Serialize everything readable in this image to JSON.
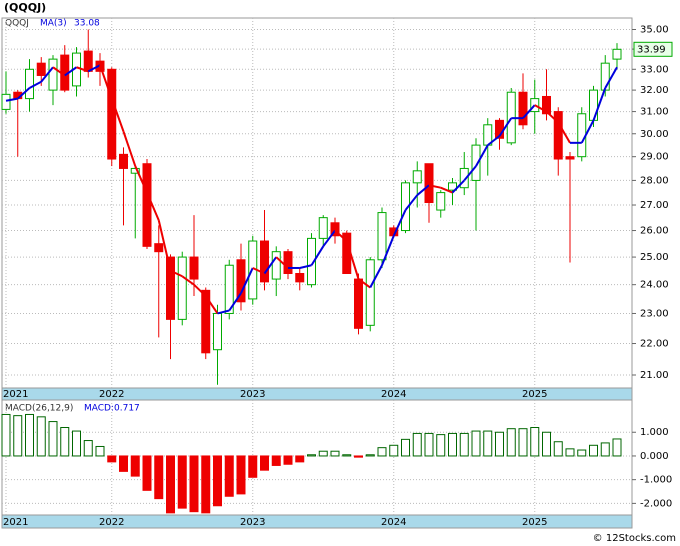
{
  "chart_data": [
    {
      "type": "candlestick",
      "title": "(QQQJ)",
      "symbol": "QQQJ",
      "ma_name": "MA(3)",
      "ma_label": "33.08",
      "watermark": "© 12Stocks.com",
      "categories": [
        "2021",
        null,
        null,
        null,
        null,
        null,
        null,
        null,
        null,
        "2022",
        null,
        null,
        null,
        null,
        null,
        null,
        null,
        null,
        null,
        null,
        null,
        "2023",
        null,
        null,
        null,
        null,
        null,
        null,
        null,
        null,
        null,
        null,
        null,
        "2024",
        null,
        null,
        null,
        null,
        null,
        null,
        null,
        null,
        null,
        null,
        null,
        "2025",
        null,
        null,
        null,
        null,
        null,
        null,
        null
      ],
      "open": [
        31.1,
        31.9,
        31.6,
        33.3,
        32.0,
        33.7,
        32.2,
        33.9,
        33.4,
        33.0,
        29.1,
        28.3,
        28.7,
        25.5,
        25.0,
        22.8,
        25.0,
        23.8,
        21.8,
        23.0,
        24.9,
        23.5,
        25.6,
        24.2,
        25.2,
        24.4,
        24.0,
        25.7,
        26.3,
        25.9,
        24.2,
        22.6,
        24.9,
        26.1,
        26.0,
        27.9,
        28.7,
        26.8,
        27.6,
        27.7,
        28.0,
        29.5,
        30.6,
        29.6,
        31.9,
        31.0,
        31.7,
        31.0,
        29.0,
        29.0,
        30.6,
        32.0,
        33.5
      ],
      "high": [
        32.9,
        32.0,
        33.5,
        33.6,
        33.7,
        34.2,
        34.1,
        35.0,
        33.8,
        33.1,
        29.4,
        28.6,
        28.9,
        26.2,
        25.1,
        25.2,
        26.6,
        23.9,
        23.3,
        24.9,
        25.5,
        25.8,
        26.8,
        25.4,
        25.3,
        24.6,
        25.9,
        26.6,
        26.5,
        26.0,
        24.4,
        25.0,
        26.9,
        26.2,
        28.0,
        28.8,
        28.7,
        27.6,
        28.1,
        29.2,
        29.8,
        30.7,
        30.7,
        32.1,
        32.8,
        32.5,
        33.0,
        31.2,
        29.2,
        31.2,
        32.2,
        33.7,
        34.3
      ],
      "low": [
        30.9,
        29.0,
        31.0,
        32.2,
        31.3,
        31.9,
        31.7,
        32.6,
        32.2,
        28.6,
        26.2,
        25.7,
        25.3,
        22.2,
        21.5,
        22.6,
        23.6,
        21.5,
        20.7,
        22.8,
        23.1,
        23.3,
        23.8,
        23.6,
        24.2,
        23.8,
        23.9,
        25.4,
        25.5,
        24.4,
        22.3,
        22.4,
        24.6,
        25.8,
        25.9,
        26.9,
        26.3,
        26.5,
        27.0,
        27.4,
        26.0,
        28.2,
        29.3,
        29.5,
        30.2,
        30.0,
        30.6,
        28.2,
        24.8,
        28.8,
        30.3,
        31.7,
        33.0
      ],
      "close": [
        31.8,
        31.6,
        33.0,
        32.7,
        33.5,
        32.0,
        33.8,
        32.9,
        32.9,
        28.9,
        28.5,
        28.5,
        25.4,
        25.2,
        22.8,
        25.0,
        24.2,
        21.7,
        23.0,
        24.7,
        23.4,
        25.6,
        24.1,
        25.2,
        24.4,
        24.1,
        25.7,
        26.5,
        25.8,
        24.4,
        22.5,
        24.9,
        26.7,
        25.8,
        27.9,
        28.4,
        27.1,
        27.5,
        27.9,
        28.5,
        29.5,
        30.4,
        29.8,
        31.9,
        30.4,
        31.6,
        30.9,
        28.9,
        28.9,
        30.9,
        32.0,
        33.3,
        33.99
      ],
      "ma": [
        31.5,
        31.6,
        32.1,
        32.4,
        33.1,
        32.7,
        33.1,
        32.9,
        33.2,
        31.6,
        30.1,
        28.6,
        27.5,
        26.4,
        24.5,
        24.3,
        24.0,
        23.6,
        23.0,
        23.1,
        23.7,
        24.6,
        24.4,
        25.0,
        24.6,
        24.6,
        24.7,
        25.4,
        26.0,
        25.6,
        24.2,
        23.9,
        24.7,
        25.8,
        26.8,
        27.4,
        27.8,
        27.7,
        27.5,
        28.0,
        28.6,
        29.5,
        29.9,
        30.7,
        30.7,
        31.3,
        31.0,
        30.5,
        29.6,
        29.6,
        30.6,
        32.1,
        33.1
      ],
      "up_color": "#00aa00",
      "down_color": "#ee0000",
      "ma_up_color": "#0000dd",
      "ma_down_color": "#ee0000",
      "log_scale": true,
      "grid": true,
      "ylim": [
        20.6,
        35.6
      ],
      "yticks": [
        {
          "value": 21,
          "label": "21.00"
        },
        {
          "value": 22,
          "label": "22.00"
        },
        {
          "value": 23,
          "label": "23.00"
        },
        {
          "value": 24,
          "label": "24.00"
        },
        {
          "value": 25,
          "label": "25.00"
        },
        {
          "value": 26,
          "label": "26.00"
        },
        {
          "value": 27,
          "label": "27.00"
        },
        {
          "value": 28,
          "label": "28.00"
        },
        {
          "value": 29,
          "label": "29.00"
        },
        {
          "value": 30,
          "label": "30.00"
        },
        {
          "value": 31,
          "label": "31.00"
        },
        {
          "value": 32,
          "label": "32.00"
        },
        {
          "value": 33,
          "label": "33.00"
        },
        {
          "value": 34,
          "label": "34.00"
        },
        {
          "value": 35,
          "label": "35.00"
        }
      ]
    },
    {
      "type": "bar",
      "name": "MACD(26,12,9)",
      "value_text": "MACD:0.717",
      "categories": [
        "2021",
        null,
        null,
        null,
        null,
        null,
        null,
        null,
        null,
        "2022",
        null,
        null,
        null,
        null,
        null,
        null,
        null,
        null,
        null,
        null,
        null,
        "2023",
        null,
        null,
        null,
        null,
        null,
        null,
        null,
        null,
        null,
        null,
        null,
        "2024",
        null,
        null,
        null,
        null,
        null,
        null,
        null,
        null,
        null,
        null,
        null,
        "2025",
        null,
        null,
        null,
        null,
        null,
        null,
        null
      ],
      "values": [
        1.75,
        1.7,
        1.75,
        1.65,
        1.45,
        1.2,
        1.05,
        0.65,
        0.4,
        -0.25,
        -0.65,
        -0.85,
        -1.45,
        -1.8,
        -2.4,
        -2.2,
        -2.35,
        -2.4,
        -2.1,
        -1.7,
        -1.6,
        -0.9,
        -0.6,
        -0.4,
        -0.35,
        -0.25,
        0.05,
        0.2,
        0.2,
        0.05,
        -0.05,
        0.05,
        0.35,
        0.45,
        0.7,
        0.95,
        0.95,
        0.9,
        0.95,
        0.95,
        1.05,
        1.05,
        1.0,
        1.15,
        1.15,
        1.2,
        1.0,
        0.6,
        0.3,
        0.25,
        0.45,
        0.55,
        0.717
      ],
      "up_color": "#006600",
      "down_color": "#ee0000",
      "grid": true,
      "ylim": [
        -2.49,
        2.36
      ],
      "yticks": [
        {
          "value": 1,
          "label": "1.000"
        },
        {
          "value": 0,
          "label": "0.000"
        },
        {
          "value": -1,
          "label": "-1.000"
        },
        {
          "value": -2,
          "label": "-2.000"
        }
      ]
    }
  ]
}
